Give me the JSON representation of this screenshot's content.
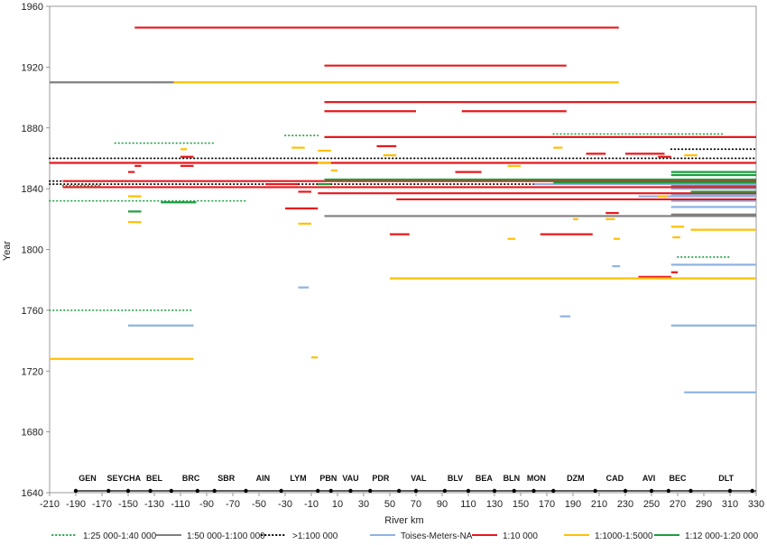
{
  "chart_data": {
    "type": "line",
    "title": "",
    "xlabel": "River km",
    "ylabel": "Year",
    "xlim": [
      -210,
      330
    ],
    "ylim": [
      1640,
      1960
    ],
    "x_ticks": [
      -210,
      -190,
      -170,
      -150,
      -130,
      -110,
      -90,
      -70,
      -50,
      -30,
      -10,
      10,
      30,
      50,
      70,
      90,
      110,
      130,
      150,
      170,
      190,
      210,
      230,
      250,
      270,
      290,
      310,
      330
    ],
    "y_ticks": [
      1640,
      1680,
      1720,
      1760,
      1800,
      1840,
      1880,
      1920,
      1960
    ],
    "grid": "off",
    "legend_position": "bottom",
    "sites": [
      {
        "label": "GEN",
        "km": -181
      },
      {
        "label": "SEY",
        "km": -160
      },
      {
        "label": "CHA",
        "km": -147
      },
      {
        "label": "BEL",
        "km": -130
      },
      {
        "label": "BRC",
        "km": -102
      },
      {
        "label": "SBR",
        "km": -75
      },
      {
        "label": "AIN",
        "km": -47
      },
      {
        "label": "LYM",
        "km": -20
      },
      {
        "label": "PBN",
        "km": 3
      },
      {
        "label": "VAU",
        "km": 20
      },
      {
        "label": "PDR",
        "km": 43
      },
      {
        "label": "VAL",
        "km": 72
      },
      {
        "label": "BLV",
        "km": 100
      },
      {
        "label": "BEA",
        "km": 122
      },
      {
        "label": "BLN",
        "km": 143
      },
      {
        "label": "MON",
        "km": 162
      },
      {
        "label": "DZM",
        "km": 192
      },
      {
        "label": "CAD",
        "km": 222
      },
      {
        "label": "AVI",
        "km": 248
      },
      {
        "label": "BEC",
        "km": 270
      },
      {
        "label": "DLT",
        "km": 307
      }
    ],
    "site_markers": [
      -190,
      -165,
      -150,
      -133,
      -117,
      -97,
      -84,
      -60,
      -33,
      -5,
      5,
      20,
      35,
      57,
      70,
      92,
      110,
      130,
      145,
      160,
      175,
      207,
      230,
      250,
      263,
      280,
      310,
      327
    ],
    "series": [
      {
        "name": "1:25 000-1:40 000",
        "color": "#22a045",
        "dash": "dotted",
        "segments": [
          [
            -210,
            -100,
            1760
          ],
          [
            -210,
            -150,
            1857
          ],
          [
            -160,
            -85,
            1870
          ],
          [
            -210,
            -60,
            1832
          ],
          [
            -30,
            -5,
            1875
          ],
          [
            -200,
            -170,
            1842
          ],
          [
            270,
            310,
            1795
          ],
          [
            175,
            265,
            1876
          ],
          [
            265,
            305,
            1876
          ]
        ]
      },
      {
        "name": "1:50 000-1:100 000",
        "color": "#7f7f7f",
        "dash": "solid",
        "segments": [
          [
            -210,
            -115,
            1910
          ],
          [
            0,
            330,
            1822
          ],
          [
            265,
            330,
            1823
          ],
          [
            265,
            330,
            1842
          ]
        ]
      },
      {
        "name": ">1:100 000",
        "color": "#000000",
        "dash": "dotted",
        "segments": [
          [
            -210,
            330,
            1860
          ],
          [
            -210,
            330,
            1843
          ],
          [
            265,
            330,
            1866
          ],
          [
            -210,
            -150,
            1845
          ]
        ]
      },
      {
        "name": "Toises-Meters-NA",
        "color": "#8db3e2",
        "dash": "solid",
        "segments": [
          [
            -150,
            -100,
            1750
          ],
          [
            -20,
            -12,
            1775
          ],
          [
            180,
            188,
            1756
          ],
          [
            220,
            226,
            1789
          ],
          [
            265,
            330,
            1750
          ],
          [
            275,
            330,
            1706
          ],
          [
            265,
            330,
            1790
          ],
          [
            265,
            330,
            1828
          ],
          [
            265,
            330,
            1832
          ],
          [
            265,
            330,
            1836
          ],
          [
            265,
            330,
            1840
          ],
          [
            160,
            330,
            1843
          ],
          [
            240,
            330,
            1835
          ]
        ]
      },
      {
        "name": "1:10 000",
        "color": "#e8181c",
        "dash": "solid",
        "segments": [
          [
            -145,
            225,
            1946
          ],
          [
            0,
            185,
            1921
          ],
          [
            0,
            330,
            1897
          ],
          [
            0,
            70,
            1891
          ],
          [
            105,
            185,
            1891
          ],
          [
            0,
            330,
            1874
          ],
          [
            -210,
            330,
            1857
          ],
          [
            -200,
            330,
            1845
          ],
          [
            -200,
            330,
            1841
          ],
          [
            -5,
            330,
            1837
          ],
          [
            55,
            330,
            1833
          ],
          [
            -30,
            -5,
            1827
          ],
          [
            50,
            65,
            1810
          ],
          [
            165,
            205,
            1810
          ],
          [
            215,
            225,
            1824
          ],
          [
            240,
            265,
            1782
          ],
          [
            -145,
            -140,
            1855
          ],
          [
            -150,
            -145,
            1851
          ],
          [
            -110,
            -100,
            1855
          ],
          [
            -110,
            -100,
            1861
          ],
          [
            40,
            55,
            1868
          ],
          [
            100,
            120,
            1851
          ],
          [
            200,
            215,
            1863
          ],
          [
            230,
            260,
            1863
          ],
          [
            255,
            265,
            1861
          ],
          [
            265,
            270,
            1785
          ],
          [
            -20,
            -10,
            1838
          ],
          [
            -45,
            -20,
            1843
          ]
        ]
      },
      {
        "name": "1:1000-1:5000",
        "color": "#ffc000",
        "dash": "solid",
        "segments": [
          [
            -210,
            -100,
            1728
          ],
          [
            -115,
            225,
            1910
          ],
          [
            50,
            330,
            1781
          ],
          [
            280,
            330,
            1813
          ],
          [
            -150,
            -140,
            1818
          ],
          [
            -20,
            -10,
            1817
          ],
          [
            -10,
            -5,
            1729
          ],
          [
            140,
            146,
            1807
          ],
          [
            221,
            226,
            1807
          ],
          [
            266,
            272,
            1808
          ],
          [
            190,
            194,
            1820
          ],
          [
            -150,
            -140,
            1835
          ],
          [
            -110,
            -105,
            1866
          ],
          [
            -5,
            5,
            1865
          ],
          [
            5,
            10,
            1852
          ],
          [
            45,
            55,
            1862
          ],
          [
            175,
            182,
            1867
          ],
          [
            215,
            222,
            1820
          ],
          [
            255,
            262,
            1835
          ],
          [
            -25,
            -15,
            1867
          ],
          [
            -5,
            5,
            1857
          ],
          [
            140,
            150,
            1855
          ],
          [
            265,
            275,
            1815
          ],
          [
            275,
            285,
            1862
          ]
        ]
      },
      {
        "name": "1:12 000-1:20 000",
        "color": "#1c9e3f",
        "dash": "solid",
        "segments": [
          [
            -150,
            -140,
            1825
          ],
          [
            -125,
            -98,
            1831
          ],
          [
            0,
            330,
            1846
          ],
          [
            175,
            330,
            1844
          ],
          [
            265,
            330,
            1849
          ],
          [
            265,
            330,
            1851
          ],
          [
            280,
            330,
            1838
          ],
          [
            -5,
            5,
            1843
          ]
        ]
      }
    ]
  }
}
